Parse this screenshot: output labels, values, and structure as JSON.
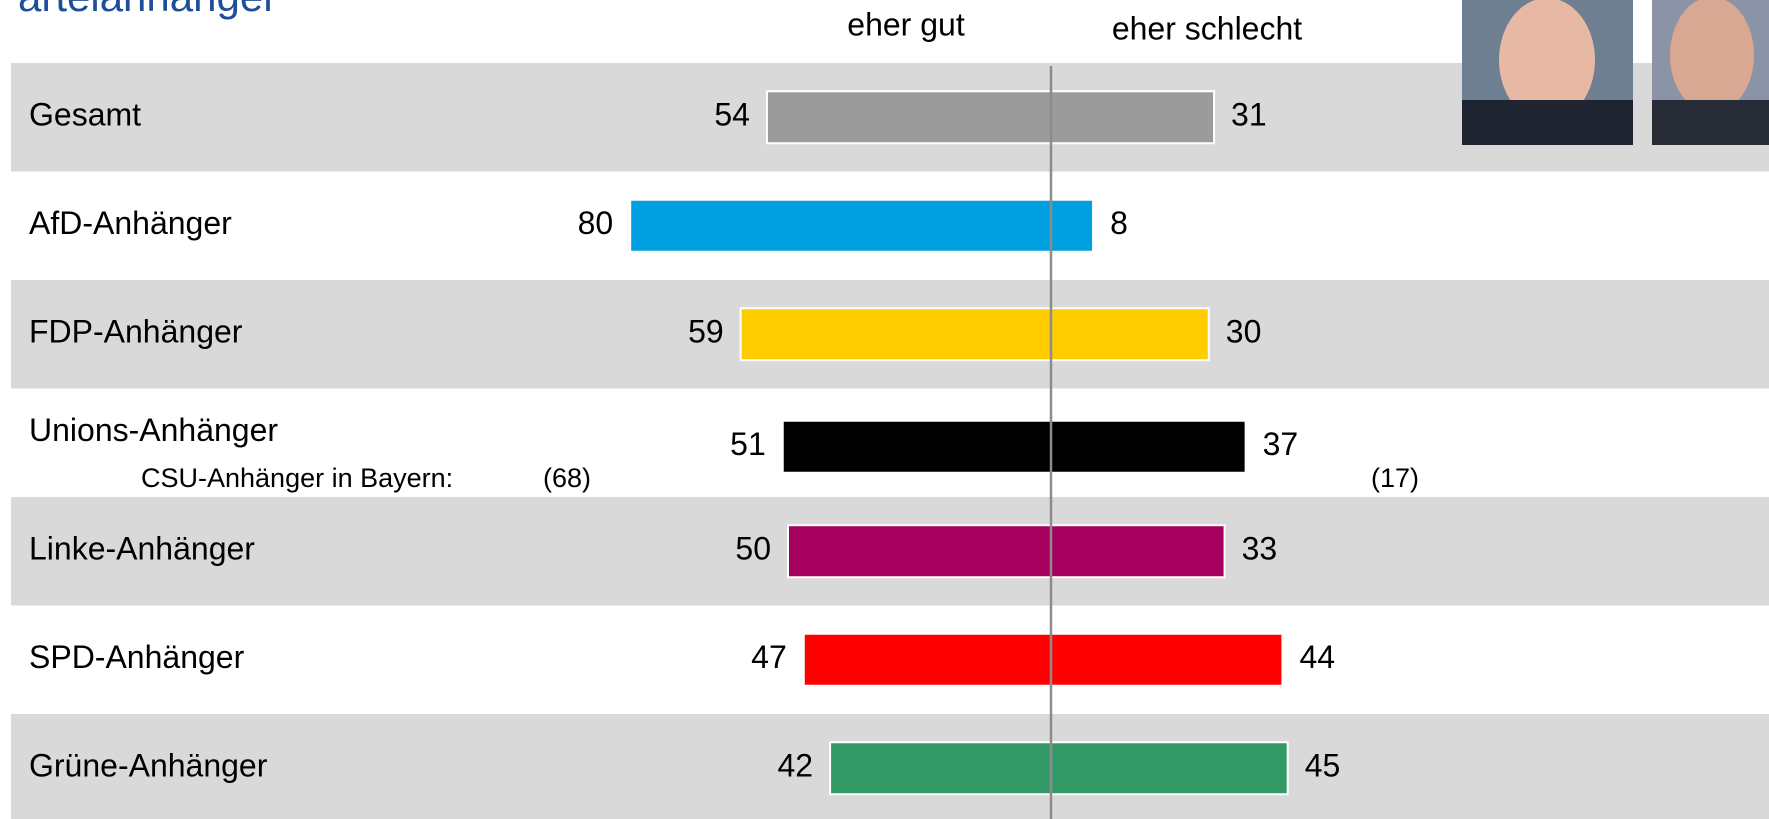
{
  "chart_data": {
    "type": "diverging-bar",
    "title": "arteianhänger",
    "categories": [
      "Gesamt",
      "AfD-Anhänger",
      "FDP-Anhänger",
      "Unions-Anhänger",
      "Linke-Anhänger",
      "SPD-Anhänger",
      "Grüne-Anhänger"
    ],
    "colors": [
      "#9b9b9b",
      "#009fe0",
      "#ffcc00",
      "#000000",
      "#a6005f",
      "#ff0000",
      "#339966"
    ],
    "series": [
      {
        "name": "eher gut",
        "values": [
          54,
          80,
          59,
          51,
          50,
          47,
          42
        ]
      },
      {
        "name": "eher schlecht",
        "values": [
          31,
          8,
          30,
          37,
          33,
          44,
          45
        ]
      }
    ],
    "annotation": {
      "label": "CSU-Anhänger in Bayern:",
      "values": [
        68,
        17
      ],
      "value_labels": [
        "(68)",
        "(17)"
      ]
    }
  }
}
